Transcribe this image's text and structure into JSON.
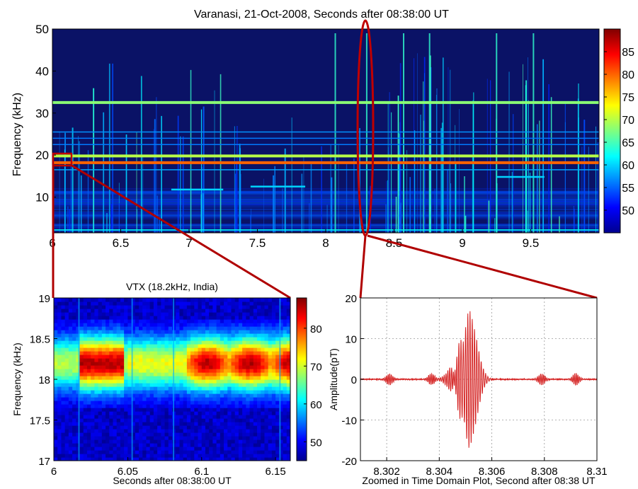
{
  "chart_data": [
    {
      "type": "heatmap",
      "title": "Varanasi, 21-Oct-2008, Seconds after 08:38:00 UT",
      "xlabel": "",
      "ylabel": "Frequency (kHz)",
      "xlim": [
        6,
        10
      ],
      "ylim": [
        1.5,
        50
      ],
      "x_ticks": [
        "6",
        "6.5",
        "7",
        "7.5",
        "8",
        "8.5",
        "9",
        "9.5"
      ],
      "y_ticks": [
        "10",
        "20",
        "30",
        "40",
        "50"
      ],
      "colorbar": {
        "range": [
          45,
          90
        ],
        "ticks": [
          "50",
          "55",
          "60",
          "65",
          "70",
          "75",
          "80",
          "85"
        ]
      },
      "horizontal_lines_khz": [
        {
          "f": 32.5,
          "level": 68
        },
        {
          "f": 19.8,
          "level": 70
        },
        {
          "f": 18.2,
          "level": 80
        },
        {
          "f": 16.5,
          "level": 58
        },
        {
          "f": 25.5,
          "level": 57
        },
        {
          "f": 24.0,
          "level": 56
        },
        {
          "f": 22.5,
          "level": 56
        },
        {
          "f": 2.2,
          "level": 62
        }
      ],
      "short_tones": [
        {
          "t0": 6.87,
          "t1": 7.25,
          "f": 11.8,
          "level": 60
        },
        {
          "t0": 7.45,
          "t1": 7.85,
          "f": 12.5,
          "level": 60
        },
        {
          "t0": 9.25,
          "t1": 9.6,
          "f": 14.8,
          "level": 60
        }
      ],
      "highlighted_event_s": 8.305
    },
    {
      "type": "heatmap",
      "title": "VTX (18.2kHz, India)",
      "xlabel": "Seconds after 08:38:00 UT",
      "ylabel": "Frequency (kHz)",
      "xlim": [
        6,
        6.16
      ],
      "ylim": [
        17,
        19
      ],
      "x_ticks": [
        "6",
        "6.05",
        "6.1",
        "6.15"
      ],
      "y_ticks": [
        "17",
        "17.5",
        "18",
        "18.5",
        "19"
      ],
      "colorbar": {
        "range": [
          45,
          88
        ],
        "ticks": [
          "50",
          "60",
          "70",
          "80"
        ]
      },
      "carrier_khz": 18.2
    },
    {
      "type": "line",
      "title": "",
      "xlabel": "Zoomed in Time Domain Plot, Second after 08:38 UT",
      "ylabel": "Amplitude(pT)",
      "xlim": [
        8.301,
        8.31
      ],
      "ylim": [
        -20,
        20
      ],
      "x_ticks": [
        "8.302",
        "8.304",
        "8.306",
        "8.308",
        "8.31"
      ],
      "y_ticks": [
        "-20",
        "-10",
        "0",
        "10",
        "20"
      ],
      "series": [
        {
          "color": "#d42020",
          "burst_center": 8.30515,
          "peak": 16.5,
          "trough": -15
        }
      ],
      "minor_bursts": [
        8.3021,
        8.3037,
        8.3079,
        8.3092
      ]
    }
  ]
}
